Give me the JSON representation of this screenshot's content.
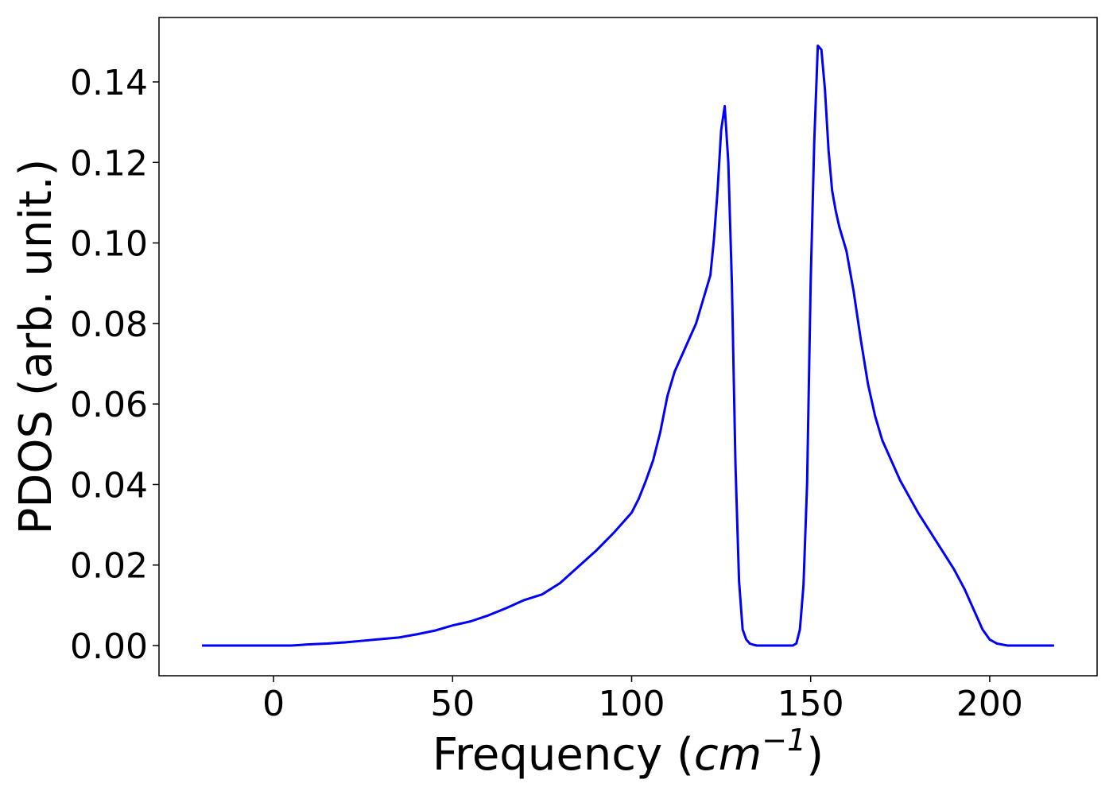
{
  "chart_data": {
    "type": "line",
    "title": "",
    "xlabel": "Frequency",
    "xlabel_unit": {
      "open": " (",
      "base": "cm",
      "exponent": "−1",
      "close": ")"
    },
    "ylabel": "PDOS (arb. unit.)",
    "xlim": [
      -32,
      230
    ],
    "ylim": [
      -0.0075,
      0.156
    ],
    "xticks": [
      0,
      50,
      100,
      150,
      200
    ],
    "xtick_labels": [
      "0",
      "50",
      "100",
      "150",
      "200"
    ],
    "yticks": [
      0,
      0.02,
      0.04,
      0.06,
      0.08,
      0.1,
      0.12,
      0.14
    ],
    "ytick_labels": [
      "0.00",
      "0.02",
      "0.04",
      "0.06",
      "0.08",
      "0.10",
      "0.12",
      "0.14"
    ],
    "grid": false,
    "series": [
      {
        "color": "#0000ff",
        "x": [
          -20,
          0,
          5,
          10,
          15,
          20,
          25,
          30,
          35,
          40,
          45,
          50,
          55,
          60,
          65,
          70,
          75,
          80,
          85,
          90,
          95,
          100,
          102,
          104,
          106,
          108,
          110,
          112,
          114,
          116,
          118,
          120,
          122,
          123,
          124,
          125,
          126,
          127,
          128,
          129,
          130,
          131,
          132,
          133,
          134,
          135,
          140,
          145,
          146,
          147,
          148,
          149,
          150,
          151,
          152,
          153,
          154,
          155,
          156,
          157,
          158,
          160,
          162,
          164,
          166,
          168,
          170,
          172,
          175,
          180,
          185,
          190,
          193,
          196,
          198,
          200,
          202,
          205,
          210,
          218
        ],
        "y": [
          0,
          0,
          0,
          0.0003,
          0.0005,
          0.0008,
          0.0012,
          0.0016,
          0.002,
          0.0028,
          0.0037,
          0.005,
          0.006,
          0.0075,
          0.0093,
          0.0113,
          0.0127,
          0.0155,
          0.0195,
          0.0235,
          0.028,
          0.033,
          0.0365,
          0.041,
          0.046,
          0.053,
          0.062,
          0.068,
          0.072,
          0.076,
          0.08,
          0.086,
          0.092,
          0.101,
          0.113,
          0.128,
          0.134,
          0.12,
          0.09,
          0.045,
          0.016,
          0.004,
          0.0015,
          0.0005,
          0.0002,
          0,
          0,
          0,
          0.0005,
          0.004,
          0.015,
          0.04,
          0.09,
          0.125,
          0.149,
          0.148,
          0.138,
          0.123,
          0.113,
          0.108,
          0.104,
          0.098,
          0.088,
          0.076,
          0.065,
          0.057,
          0.051,
          0.047,
          0.041,
          0.033,
          0.026,
          0.019,
          0.014,
          0.008,
          0.004,
          0.0015,
          0.0005,
          0,
          0,
          0
        ]
      }
    ]
  }
}
